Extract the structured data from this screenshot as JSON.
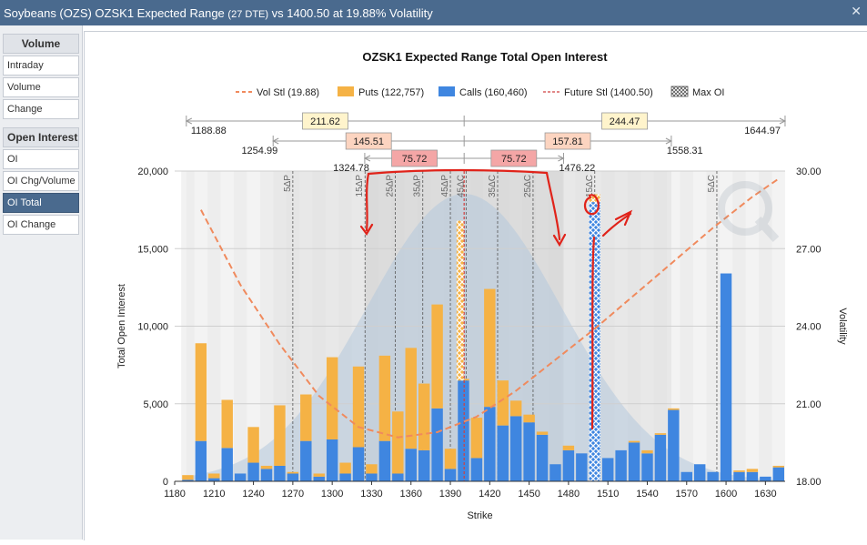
{
  "window": {
    "title_main": "Soybeans (OZS) OZSK1 Expected Range",
    "title_dte": "(27 DTE)",
    "title_rest": "vs 1400.50 at 19.88% Volatility"
  },
  "sidebar": {
    "volume_header": "Volume",
    "volume_items": [
      "Intraday",
      "Volume",
      "Change"
    ],
    "oi_header": "Open Interest",
    "oi_items": [
      "OI",
      "OI Chg/Volume",
      "OI Total",
      "OI Change"
    ],
    "active_item": "OI Total"
  },
  "chart_data": {
    "type": "bar",
    "title": "OZSK1 Expected Range Total Open Interest",
    "xlabel": "Strike",
    "ylabel": "Total Open Interest",
    "y2label": "Volatility",
    "xlim": [
      1180,
      1645
    ],
    "ylim": [
      0,
      20000
    ],
    "y2lim": [
      18.0,
      30.0
    ],
    "x_ticks": [
      "1180",
      "1210",
      "1240",
      "1270",
      "1300",
      "1330",
      "1360",
      "1390",
      "1420",
      "1450",
      "1480",
      "1510",
      "1540",
      "1570",
      "1600",
      "1630"
    ],
    "y_ticks": [
      "0",
      "5,000",
      "10,000",
      "15,000",
      "20,000"
    ],
    "y2_ticks": [
      "18.00",
      "21.00",
      "24.00",
      "27.00",
      "30.00"
    ],
    "legend": [
      {
        "name": "Vol Stl (19.88)",
        "color": "#f08a5d"
      },
      {
        "name": "Puts (122,757)",
        "color": "#f5b245"
      },
      {
        "name": "Calls (160,460)",
        "color": "#3f86e0"
      },
      {
        "name": "Future Stl (1400.50)",
        "color": "#d04040"
      },
      {
        "name": "Max OI",
        "color": "#3f86e0"
      }
    ],
    "strikes": [
      1190,
      1200,
      1210,
      1220,
      1230,
      1240,
      1250,
      1260,
      1270,
      1280,
      1290,
      1300,
      1310,
      1320,
      1330,
      1340,
      1350,
      1360,
      1370,
      1380,
      1390,
      1400,
      1410,
      1420,
      1430,
      1440,
      1450,
      1460,
      1470,
      1480,
      1490,
      1500,
      1510,
      1520,
      1530,
      1540,
      1550,
      1560,
      1570,
      1580,
      1590,
      1600,
      1610,
      1620,
      1630,
      1640
    ],
    "calls": [
      100,
      2600,
      200,
      2150,
      500,
      1200,
      800,
      1000,
      500,
      2600,
      300,
      2700,
      500,
      2200,
      500,
      2600,
      500,
      2100,
      2000,
      4700,
      800,
      6500,
      1500,
      4800,
      3600,
      4200,
      3800,
      3000,
      1100,
      2000,
      1800,
      18000,
      1500,
      2000,
      2500,
      1800,
      3000,
      4600,
      600,
      1100,
      600,
      13400,
      600,
      600,
      300,
      900
    ],
    "puts": [
      300,
      6300,
      300,
      3100,
      0,
      2300,
      200,
      3900,
      100,
      3000,
      200,
      5300,
      700,
      5200,
      600,
      5500,
      4000,
      6500,
      4300,
      6700,
      1300,
      100,
      2600,
      7600,
      2900,
      1000,
      500,
      200,
      0,
      300,
      0,
      500,
      0,
      0,
      100,
      200,
      100,
      100,
      0,
      0,
      0,
      0,
      100,
      200,
      0,
      100
    ],
    "max_oi_strike": 1500,
    "future_settle": 1400.5,
    "vol_smile": [
      [
        1200,
        28.5
      ],
      [
        1230,
        25.6
      ],
      [
        1260,
        23.3
      ],
      [
        1290,
        21.3
      ],
      [
        1320,
        20.1
      ],
      [
        1350,
        19.7
      ],
      [
        1380,
        19.9
      ],
      [
        1410,
        20.5
      ],
      [
        1440,
        21.5
      ],
      [
        1470,
        22.7
      ],
      [
        1500,
        23.9
      ],
      [
        1530,
        25.2
      ],
      [
        1560,
        26.5
      ],
      [
        1590,
        27.8
      ],
      [
        1620,
        29.0
      ],
      [
        1640,
        29.7
      ]
    ],
    "deltas": [
      {
        "label": "5ΔP",
        "x": 1270
      },
      {
        "label": "15ΔP",
        "x": 1325
      },
      {
        "label": "25ΔP",
        "x": 1348
      },
      {
        "label": "35ΔP",
        "x": 1369
      },
      {
        "label": "45ΔP",
        "x": 1390
      },
      {
        "label": "45ΔC",
        "x": 1402
      },
      {
        "label": "35ΔC",
        "x": 1426
      },
      {
        "label": "25ΔC",
        "x": 1453
      },
      {
        "label": "15ΔC",
        "x": 1500
      },
      {
        "label": "5ΔC",
        "x": 1593
      }
    ],
    "ranges": [
      {
        "low": "1188.88",
        "width": "211.62",
        "high_width": "244.47",
        "high": "1644.97"
      },
      {
        "low": "1254.99",
        "width": "145.51",
        "high_width": "157.81",
        "high": "1558.31"
      },
      {
        "low": "1324.78",
        "width": "75.72",
        "high_width": "75.72",
        "high": "1476.22"
      }
    ]
  }
}
